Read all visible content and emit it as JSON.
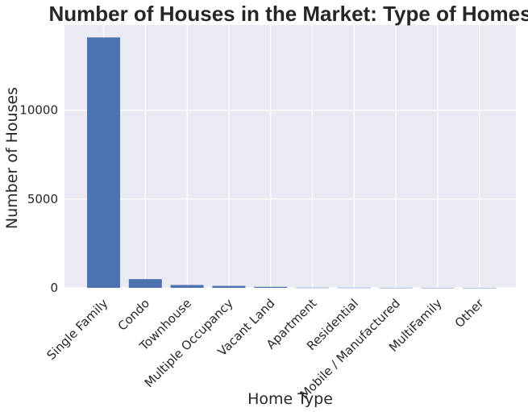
{
  "chart_data": {
    "type": "bar",
    "title": "Number of Houses in the Market: Type of Homes",
    "xlabel": "Home Type",
    "ylabel": "Number of Houses",
    "categories": [
      "Single Family",
      "Condo",
      "Townhouse",
      "Multiple Occupancy",
      "Vacant Land",
      "Apartment",
      "Residential",
      "Mobile / Manufactured",
      "MultiFamily",
      "Other"
    ],
    "values": [
      14100,
      490,
      160,
      110,
      55,
      12,
      10,
      6,
      4,
      3
    ],
    "yticks": [
      0,
      5000,
      10000
    ],
    "ylim": [
      0,
      14800
    ],
    "grid": true,
    "bar_color": "#4c72b0",
    "background_color": "#eaeaf2",
    "grid_color": "#ffffff"
  }
}
